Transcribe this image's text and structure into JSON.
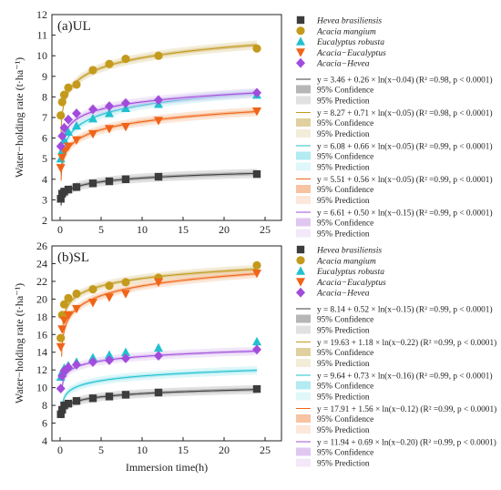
{
  "figure": {
    "xlabel": "Immersion time(h)",
    "ylabel": "Water−holding rate (t·ha⁻¹)",
    "ci_label": "95% Confidence",
    "pi_label": "95% Prediction",
    "species": [
      {
        "key": "hb",
        "name": "Hevea brasiliensis",
        "italic": true,
        "color": "#3c3c3c",
        "band": "#a9a9a9",
        "marker": "square"
      },
      {
        "key": "am",
        "name": "Acacia mangium",
        "italic": true,
        "color": "#c49a1c",
        "band": "#dcc88e",
        "marker": "circle"
      },
      {
        "key": "er",
        "name": "Eucalyptus  robusta",
        "italic": true,
        "color": "#22c1cf",
        "band": "#a5e8ef",
        "marker": "triangle-up"
      },
      {
        "key": "ae",
        "name": "Acacia−Eucalyptus",
        "italic": true,
        "color": "#f06418",
        "band": "#f6b990",
        "marker": "triangle-down"
      },
      {
        "key": "ah",
        "name": "Acacia−Hevea",
        "italic": true,
        "color": "#a24cdc",
        "band": "#d9bdf0",
        "marker": "diamond"
      }
    ]
  },
  "chart_data": [
    {
      "type": "scatter",
      "panel_label": "(a)UL",
      "xlabel": "",
      "ylabel": "Water−holding rate (t·ha⁻¹)",
      "xlim": [
        -1,
        27
      ],
      "ylim": [
        2,
        12
      ],
      "xticks": [
        0,
        5,
        10,
        15,
        20,
        25
      ],
      "yticks": [
        2,
        3,
        4,
        5,
        6,
        7,
        8,
        9,
        10,
        11,
        12
      ],
      "x": [
        0.08,
        0.25,
        0.5,
        1,
        2,
        4,
        6,
        8,
        12,
        24
      ],
      "series": [
        {
          "name": "Hevea brasiliensis",
          "values": [
            3.05,
            3.3,
            3.4,
            3.5,
            3.62,
            3.8,
            3.9,
            4.0,
            4.12,
            4.25
          ],
          "fit": {
            "a": 3.46,
            "b": 0.26,
            "c": 0.04
          },
          "equation": "y = 3.46 + 0.26 × ln(x−0.04) (R² =0.98, p < 0.0001)"
        },
        {
          "name": "Acacia mangium",
          "values": [
            7.1,
            7.75,
            8.1,
            8.45,
            8.6,
            9.3,
            9.6,
            9.85,
            10.0,
            10.35
          ],
          "fit": {
            "a": 8.27,
            "b": 0.71,
            "c": 0.05
          },
          "equation": "y = 8.27 + 0.71 × ln(x−0.05) (R² =0.98, p < 0.0001)"
        },
        {
          "name": "Eucalyptus  robusta",
          "values": [
            5.0,
            5.4,
            5.9,
            6.3,
            6.6,
            6.95,
            7.2,
            7.45,
            7.65,
            8.1
          ],
          "fit": {
            "a": 6.08,
            "b": 0.66,
            "c": 0.05
          },
          "equation": "y = 6.08 + 0.66 × ln(x−0.05) (R² =0.99, p < 0.0001)"
        },
        {
          "name": "Acacia−Eucalyptus",
          "values": [
            4.55,
            5.05,
            5.4,
            5.6,
            5.9,
            6.2,
            6.45,
            6.55,
            6.85,
            7.3
          ],
          "fit": {
            "a": 5.51,
            "b": 0.56,
            "c": 0.05
          },
          "equation": "y = 5.51 + 0.56 × ln(x−0.05) (R² =0.99, p < 0.0001)"
        },
        {
          "name": "Acacia−Hevea",
          "values": [
            5.6,
            6.1,
            6.5,
            6.9,
            7.2,
            7.4,
            7.55,
            7.7,
            7.85,
            8.2
          ],
          "fit": {
            "a": 6.61,
            "b": 0.5,
            "c": 0.15
          },
          "equation": "y = 6.61 + 0.50 × ln(x−0.15) (R² =0.99, p < 0.0001)"
        }
      ]
    },
    {
      "type": "scatter",
      "panel_label": "(b)SL",
      "xlabel": "Immersion time(h)",
      "ylabel": "Water−holding rate (t·ha⁻¹)",
      "xlim": [
        -1,
        27
      ],
      "ylim": [
        4,
        26
      ],
      "xticks": [
        0,
        5,
        10,
        15,
        20,
        25
      ],
      "yticks": [
        4,
        6,
        8,
        10,
        12,
        14,
        16,
        18,
        20,
        22,
        24,
        26
      ],
      "x": [
        0.08,
        0.25,
        0.5,
        1,
        2,
        4,
        6,
        8,
        12,
        24
      ],
      "series": [
        {
          "name": "Hevea brasiliensis",
          "values": [
            7.0,
            7.5,
            8.0,
            8.2,
            8.5,
            8.8,
            9.0,
            9.2,
            9.45,
            9.85
          ],
          "fit": {
            "a": 8.14,
            "b": 0.52,
            "c": 0.15
          },
          "equation": "y = 8.14 + 0.52 × ln(x−0.15) (R² =0.99, p < 0.0001)"
        },
        {
          "name": "Acacia mangium",
          "values": [
            15.6,
            18.2,
            19.4,
            20.1,
            20.6,
            21.1,
            21.5,
            21.9,
            22.4,
            23.8
          ],
          "fit": {
            "a": 19.63,
            "b": 1.18,
            "c": 0.22
          },
          "equation": "y = 19.63 + 1.18 × ln(x−0.22) (R² =0.99, p < 0.0001)"
        },
        {
          "name": "Eucalyptus  robusta",
          "values": [
            11.2,
            11.8,
            12.2,
            12.5,
            12.9,
            13.4,
            13.7,
            14.0,
            14.5,
            15.2
          ],
          "fit": {
            "a": 9.64,
            "b": 0.73,
            "c": 0.16
          },
          "equation": "y = 9.64 + 0.73 × ln(x−0.16) (R² =0.99, p < 0.0001)"
        },
        {
          "name": "Acacia−Eucalyptus",
          "values": [
            14.6,
            16.6,
            17.6,
            18.2,
            18.9,
            19.6,
            20.2,
            20.6,
            21.9,
            22.9
          ],
          "fit": {
            "a": 17.91,
            "b": 1.56,
            "c": 0.12
          },
          "equation": "y = 17.91 + 1.56 × ln(x−0.12) (R² =0.99, p < 0.0001)"
        },
        {
          "name": "Acacia−Hevea",
          "values": [
            9.9,
            11.3,
            11.9,
            12.3,
            12.6,
            12.9,
            13.1,
            13.3,
            13.6,
            14.3
          ],
          "fit": {
            "a": 11.94,
            "b": 0.69,
            "c": 0.2
          },
          "equation": "y = 11.94 + 0.69 × ln(x−0.20) (R² =0.99, p < 0.0001)"
        }
      ]
    }
  ]
}
